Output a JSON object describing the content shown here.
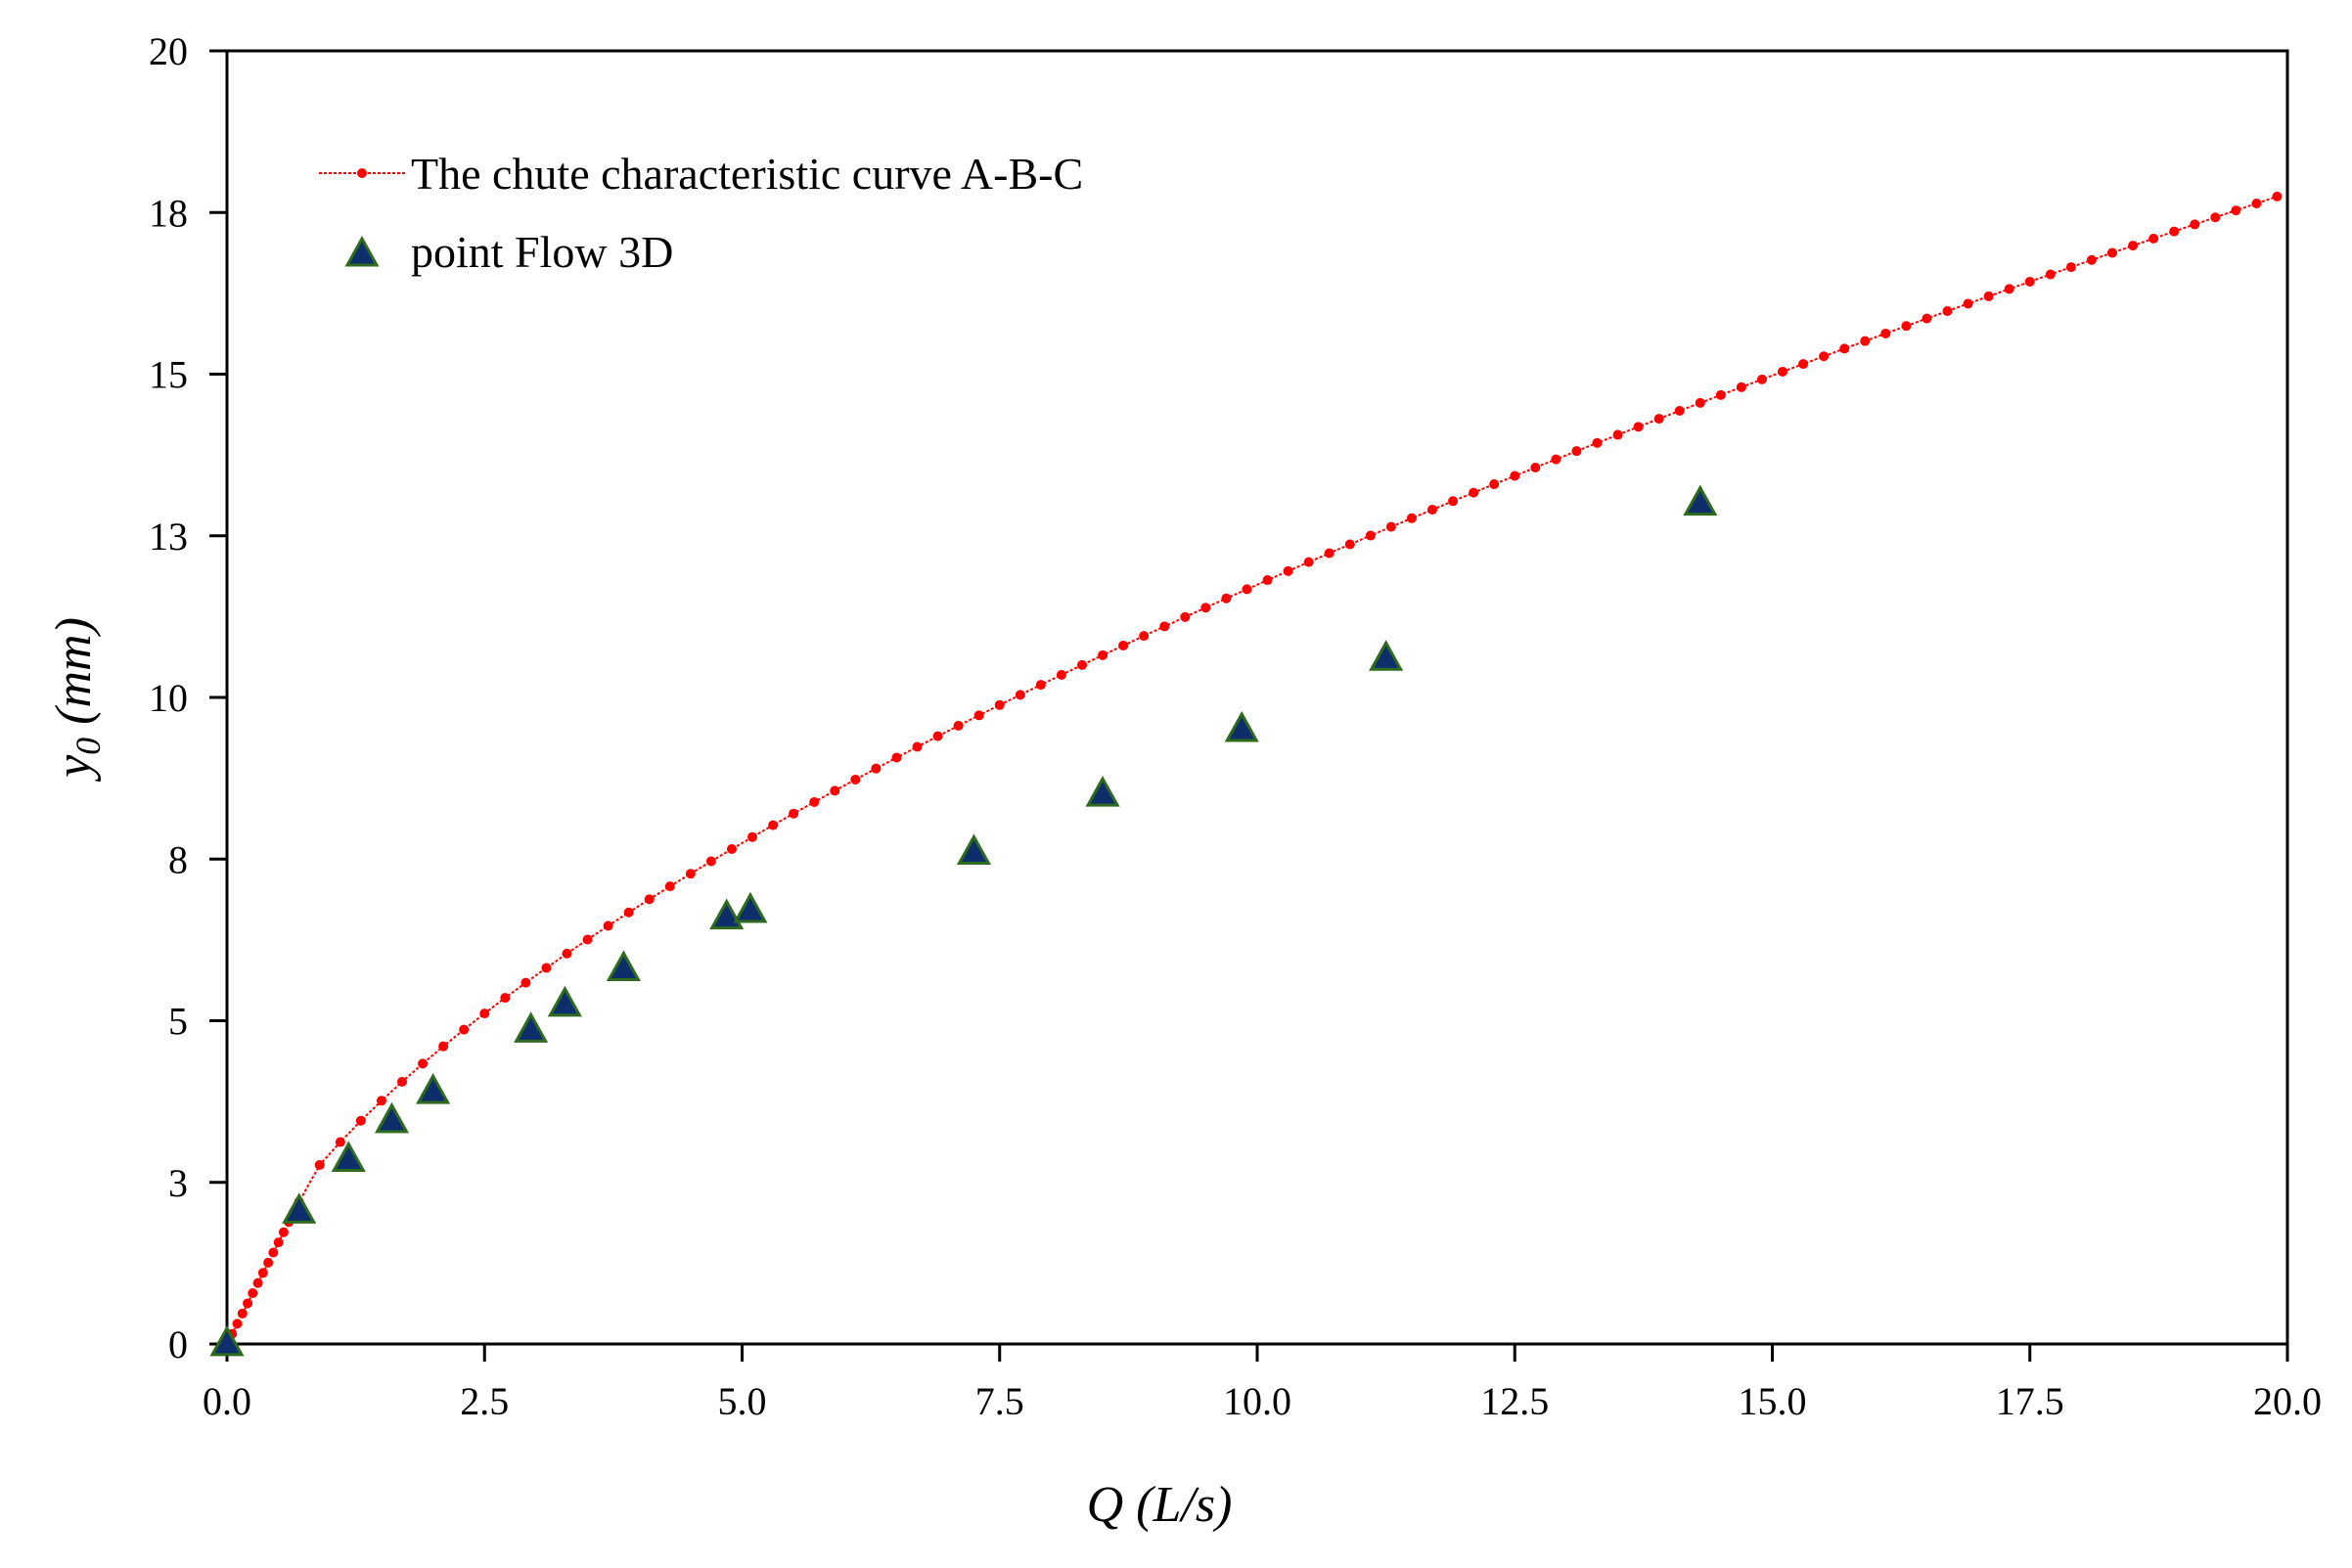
{
  "chart_data": {
    "type": "scatter",
    "x_axis": {
      "label_main": "Q (L/s)",
      "min": 0,
      "max": 20,
      "ticks": [
        0,
        2.5,
        5,
        7.5,
        10,
        12.5,
        15,
        17.5,
        20
      ],
      "tick_labels": [
        "0.0",
        "2.5",
        "5.0",
        "7.5",
        "10.0",
        "12.5",
        "15.0",
        "17.5",
        "20.0"
      ]
    },
    "y_axis": {
      "label_main": "y",
      "label_sub": "0",
      "label_unit": " (mm)",
      "min": 0,
      "max": 20,
      "ticks": [
        0,
        2.5,
        5,
        7.5,
        10,
        12.5,
        15,
        17.5,
        20
      ],
      "tick_labels": [
        "0",
        "3",
        "5",
        "8",
        "10",
        "13",
        "15",
        "18",
        "20"
      ]
    },
    "grid": false,
    "legend_placement": "top-left",
    "series": [
      {
        "name": "The chute characteristic curve A-B-C",
        "kind": "line-markers",
        "color": "#ff0000",
        "curve": {
          "segment_A": {
            "x": [
              0,
              0.7
            ],
            "y": [
              0,
              2.2
            ]
          },
          "segment_B": {
            "x": [
              0.7,
              20
            ],
            "power_coeff": 2.95,
            "power_exp": 0.6
          }
        }
      },
      {
        "name": "point Flow 3D",
        "kind": "markers",
        "marker": "triangle",
        "fill": "#0d2d6b",
        "stroke": "#2e6b1f",
        "x": [
          0,
          0.7,
          1.18,
          1.6,
          2.0,
          2.95,
          3.28,
          3.85,
          4.85,
          5.08,
          7.25,
          8.5,
          9.85,
          11.25,
          14.3
        ],
        "y": [
          0,
          2.05,
          2.85,
          3.45,
          3.9,
          4.85,
          5.25,
          5.8,
          6.6,
          6.7,
          7.6,
          8.5,
          9.5,
          10.6,
          13.0
        ]
      }
    ]
  }
}
